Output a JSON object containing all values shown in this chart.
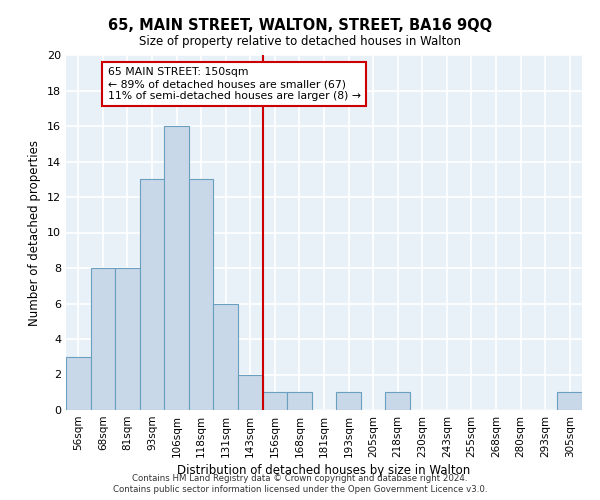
{
  "title": "65, MAIN STREET, WALTON, STREET, BA16 9QQ",
  "subtitle": "Size of property relative to detached houses in Walton",
  "xlabel": "Distribution of detached houses by size in Walton",
  "ylabel": "Number of detached properties",
  "bar_labels": [
    "56sqm",
    "68sqm",
    "81sqm",
    "93sqm",
    "106sqm",
    "118sqm",
    "131sqm",
    "143sqm",
    "156sqm",
    "168sqm",
    "181sqm",
    "193sqm",
    "205sqm",
    "218sqm",
    "230sqm",
    "243sqm",
    "255sqm",
    "268sqm",
    "280sqm",
    "293sqm",
    "305sqm"
  ],
  "bar_values": [
    3,
    8,
    8,
    13,
    16,
    13,
    6,
    2,
    1,
    1,
    0,
    1,
    0,
    1,
    0,
    0,
    0,
    0,
    0,
    0,
    1
  ],
  "bar_color": "#c8d8e8",
  "bar_edgecolor": "#6a9fc0",
  "vline_x": 8.0,
  "vline_color": "#cc0000",
  "annotation_text": "65 MAIN STREET: 150sqm\n← 89% of detached houses are smaller (67)\n11% of semi-detached houses are larger (8) →",
  "annotation_box_edgecolor": "#cc0000",
  "ylim": [
    0,
    20
  ],
  "yticks": [
    0,
    2,
    4,
    6,
    8,
    10,
    12,
    14,
    16,
    18,
    20
  ],
  "footer_line1": "Contains HM Land Registry data © Crown copyright and database right 2024.",
  "footer_line2": "Contains public sector information licensed under the Open Government Licence v3.0.",
  "bg_color": "#e8f0f8",
  "grid_color": "#ffffff"
}
